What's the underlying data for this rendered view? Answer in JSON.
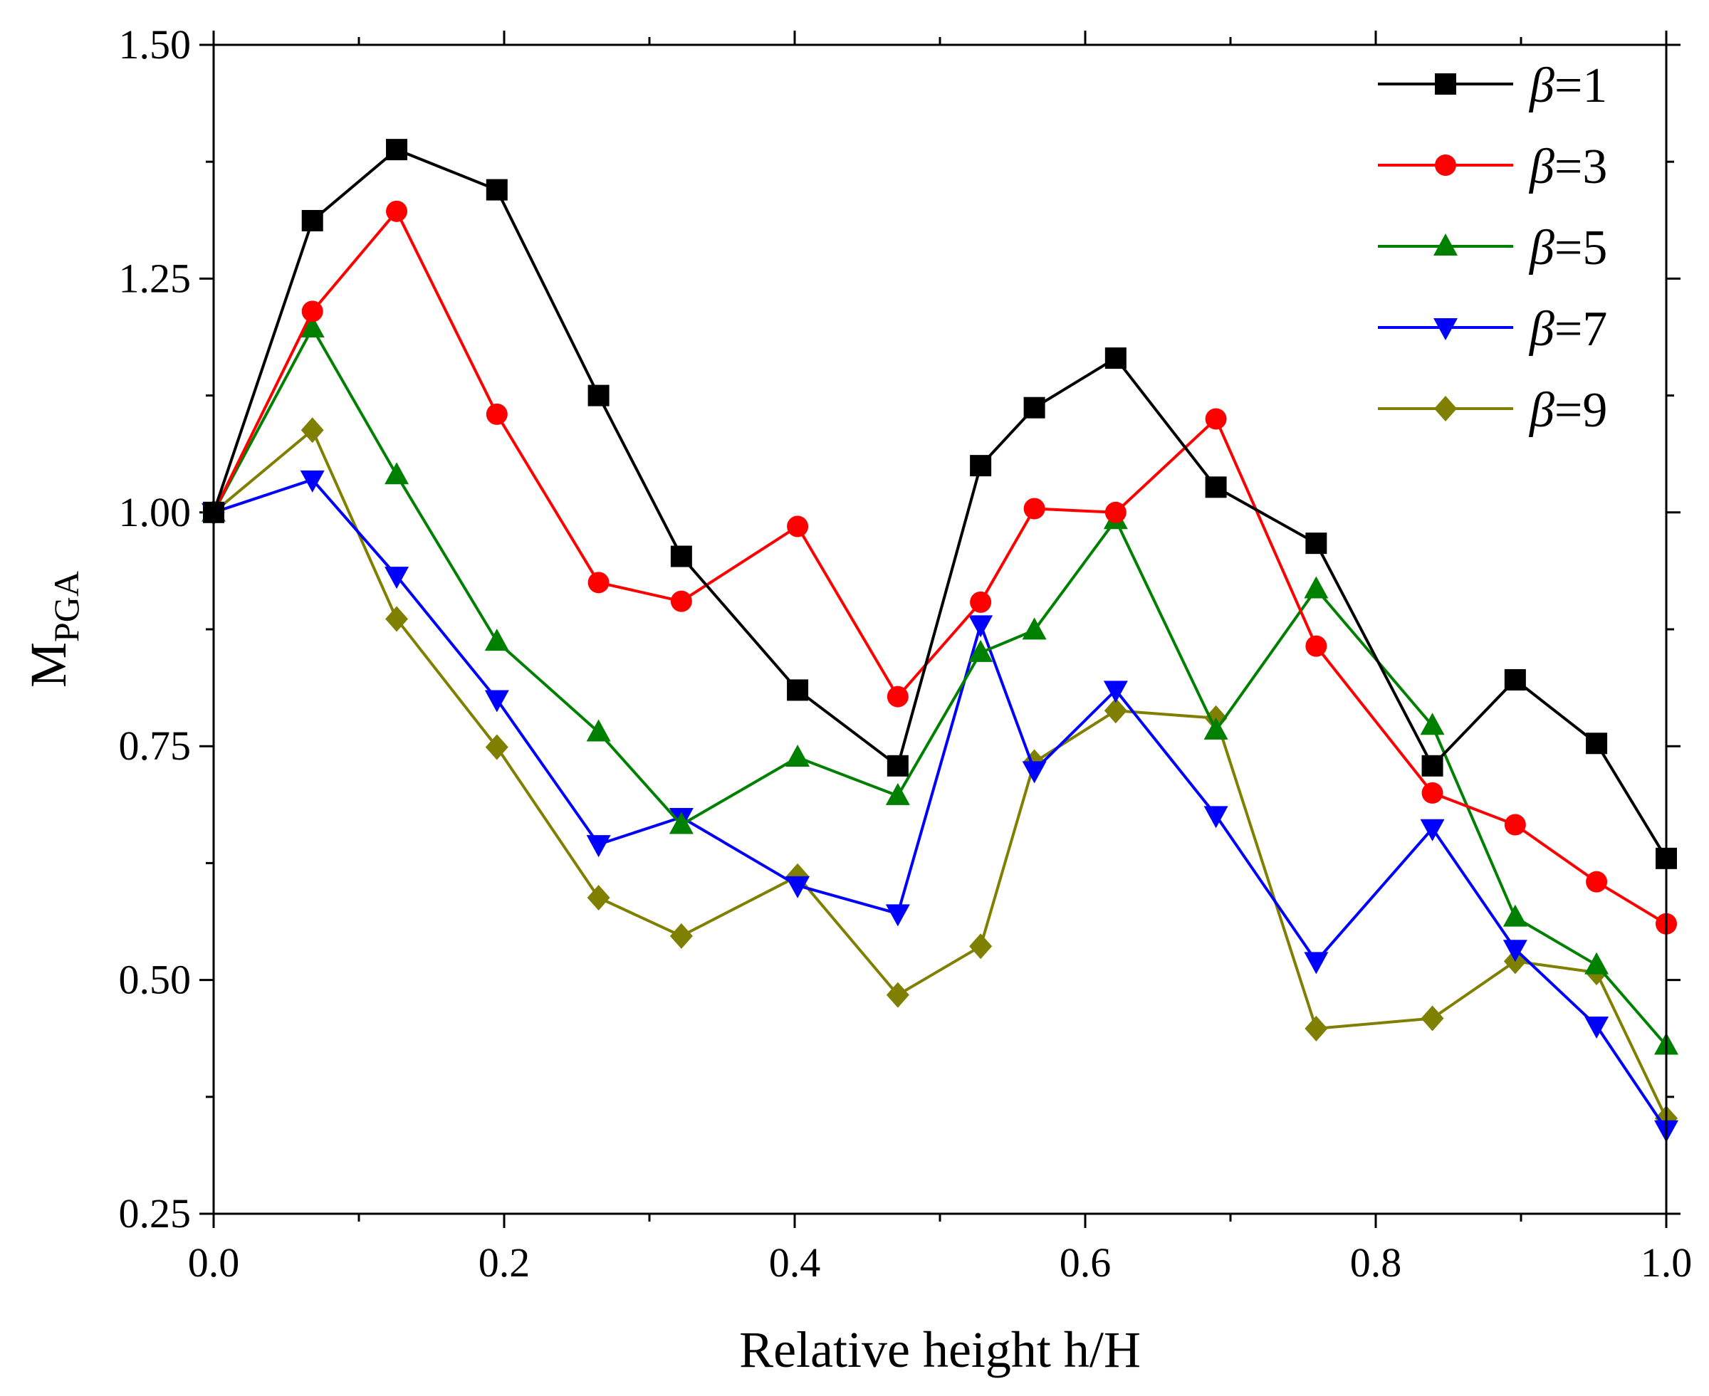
{
  "chart_data": {
    "type": "line",
    "title": "",
    "xlabel": "Relative height h/H",
    "ylabel": {
      "main": "M",
      "subscript": "PGA"
    },
    "xlim": [
      0.0,
      1.0
    ],
    "ylim": [
      0.25,
      1.5
    ],
    "xticks": [
      0.0,
      0.2,
      0.4,
      0.6,
      0.8,
      1.0
    ],
    "xtick_labels": [
      "0.0",
      "0.2",
      "0.4",
      "0.6",
      "0.8",
      "1.0"
    ],
    "yticks": [
      0.25,
      0.5,
      0.75,
      1.0,
      1.25,
      1.5
    ],
    "ytick_labels": [
      "0.25",
      "0.50",
      "0.75",
      "1.00",
      "1.25",
      "1.50"
    ],
    "minor_xticks": [
      0.1,
      0.3,
      0.5,
      0.7,
      0.9
    ],
    "minor_yticks": [
      0.375,
      0.625,
      0.875,
      1.125,
      1.375
    ],
    "grid": false,
    "legend_position": "top-right",
    "x": [
      0.0,
      0.068,
      0.126,
      0.195,
      0.265,
      0.322,
      0.402,
      0.471,
      0.528,
      0.565,
      0.621,
      0.69,
      0.759,
      0.839,
      0.896,
      0.952,
      1.0
    ],
    "series": [
      {
        "name": "β=1",
        "symbol": "β",
        "value": "=1",
        "color": "#000000",
        "marker": "square",
        "values": [
          1.0,
          1.312,
          1.388,
          1.345,
          1.125,
          0.953,
          0.81,
          0.729,
          1.05,
          1.112,
          1.165,
          1.027,
          0.967,
          0.729,
          0.821,
          0.753,
          0.63
        ]
      },
      {
        "name": "β=3",
        "symbol": "β",
        "value": "=3",
        "color": "#ff0000",
        "marker": "circle",
        "values": [
          1.0,
          1.215,
          1.322,
          1.105,
          0.925,
          0.905,
          0.985,
          0.803,
          0.904,
          1.004,
          1.0,
          1.1,
          0.857,
          0.7,
          0.666,
          0.605,
          0.56
        ]
      },
      {
        "name": "β=5",
        "symbol": "β",
        "value": "=5",
        "color": "#008000",
        "marker": "triangle-up",
        "values": [
          1.0,
          1.197,
          1.04,
          0.862,
          0.765,
          0.666,
          0.738,
          0.697,
          0.85,
          0.874,
          0.992,
          0.767,
          0.918,
          0.772,
          0.567,
          0.516,
          0.43
        ]
      },
      {
        "name": "β=7",
        "symbol": "β",
        "value": "=7",
        "color": "#0000ff",
        "marker": "triangle-down",
        "values": [
          1.0,
          1.035,
          0.932,
          0.8,
          0.645,
          0.674,
          0.601,
          0.571,
          0.88,
          0.724,
          0.81,
          0.676,
          0.52,
          0.662,
          0.533,
          0.451,
          0.34
        ]
      },
      {
        "name": "β=9",
        "symbol": "β",
        "value": "=9",
        "color": "#808000",
        "marker": "diamond",
        "values": [
          1.0,
          1.088,
          0.886,
          0.749,
          0.588,
          0.547,
          0.611,
          0.484,
          0.536,
          0.733,
          0.788,
          0.78,
          0.448,
          0.459,
          0.52,
          0.508,
          0.352
        ]
      }
    ]
  }
}
